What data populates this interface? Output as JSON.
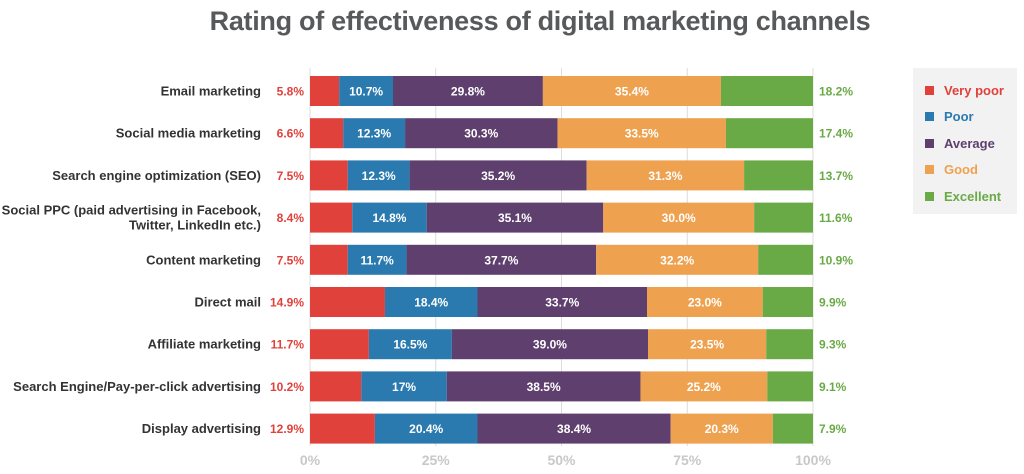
{
  "title": "Rating of effectiveness of digital marketing channels",
  "chart_data": {
    "type": "bar",
    "orientation": "horizontal",
    "stacked": true,
    "title": "Rating of effectiveness of digital marketing channels",
    "xlabel": "",
    "ylabel": "",
    "xlim": [
      0,
      100
    ],
    "x_ticks": [
      "0%",
      "25%",
      "50%",
      "75%",
      "100%"
    ],
    "grid": true,
    "legend_position": "right",
    "categories": [
      [
        "Email marketing"
      ],
      [
        "Social media marketing"
      ],
      [
        "Search engine optimization (SEO)"
      ],
      [
        "Social PPC (paid advertising in Facebook,",
        "Twitter, LinkedIn etc.)"
      ],
      [
        "Content marketing"
      ],
      [
        "Direct mail"
      ],
      [
        "Affiliate marketing"
      ],
      [
        "Search Engine/Pay-per-click advertising"
      ],
      [
        "Display advertising"
      ]
    ],
    "series": [
      {
        "name": "Very poor",
        "color": "#e0413a",
        "values": [
          5.8,
          6.6,
          7.5,
          8.4,
          7.5,
          14.9,
          11.7,
          10.2,
          12.9
        ],
        "labels": [
          "5.8%",
          "6.6%",
          "7.5%",
          "8.4%",
          "7.5%",
          "14.9%",
          "11.7%",
          "10.2%",
          "12.9%"
        ]
      },
      {
        "name": "Poor",
        "color": "#2a7aaf",
        "values": [
          10.7,
          12.3,
          12.3,
          14.8,
          11.7,
          18.4,
          16.5,
          17,
          20.4
        ],
        "labels": [
          "10.7%",
          "12.3%",
          "12.3%",
          "14.8%",
          "11.7%",
          "18.4%",
          "16.5%",
          "17%",
          "20.4%"
        ]
      },
      {
        "name": "Average",
        "color": "#5e3f6e",
        "values": [
          29.8,
          30.3,
          35.2,
          35.1,
          37.7,
          33.7,
          39.0,
          38.5,
          38.4
        ],
        "labels": [
          "29.8%",
          "30.3%",
          "35.2%",
          "35.1%",
          "37.7%",
          "33.7%",
          "39.0%",
          "38.5%",
          "38.4%"
        ]
      },
      {
        "name": "Good",
        "color": "#eea250",
        "values": [
          35.4,
          33.5,
          31.3,
          30.0,
          32.2,
          23.0,
          23.5,
          25.2,
          20.3
        ],
        "labels": [
          "35.4%",
          "33.5%",
          "31.3%",
          "30.0%",
          "32.2%",
          "23.0%",
          "23.5%",
          "25.2%",
          "20.3%"
        ]
      },
      {
        "name": "Excellent",
        "color": "#6aaa46",
        "values": [
          18.2,
          17.4,
          13.7,
          11.6,
          10.9,
          9.9,
          9.3,
          9.1,
          7.9
        ],
        "labels": [
          "18.2%",
          "17.4%",
          "13.7%",
          "11.6%",
          "10.9%",
          "9.9%",
          "9.3%",
          "9.1%",
          "7.9%"
        ]
      }
    ]
  },
  "colors": {
    "title": "#58595b",
    "category_label": "#333333",
    "tick_label": "#c8c8c8",
    "grid": "#dcdcdc",
    "legend_background": "#f2f2f2"
  }
}
